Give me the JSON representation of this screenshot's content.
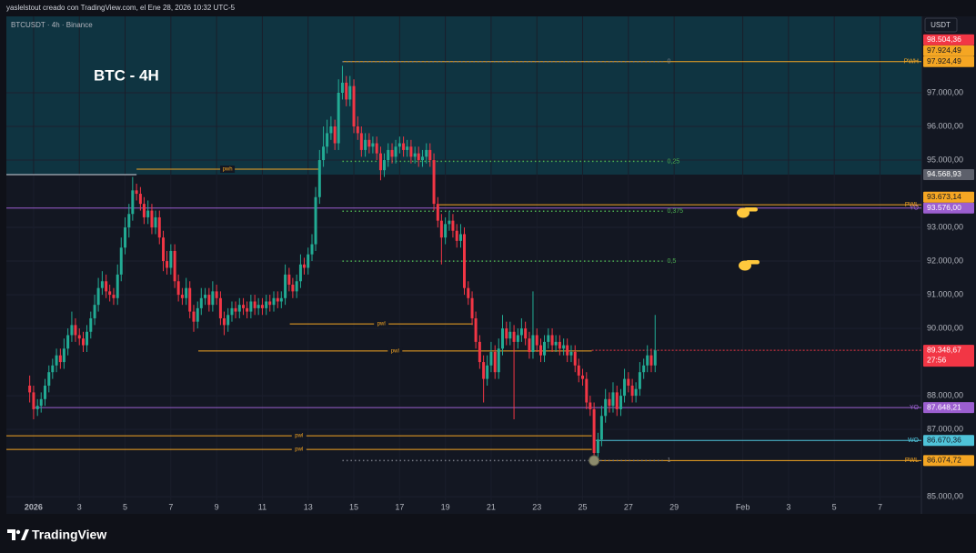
{
  "header": {
    "author_line": "yaslelstout creado con TradingView.com, el Ene 28, 2026 10:32 UTC-5",
    "symbol": "BTCUSDT · 4h · Binance",
    "currency": "USDT",
    "brand": "TradingView"
  },
  "chart_data": {
    "type": "candlestick",
    "title": "BTC - 4H",
    "x": [
      0.83,
      1,
      1.17,
      1.33,
      1.5,
      1.67,
      1.83,
      2,
      2.17,
      2.33,
      2.5,
      2.67,
      2.83,
      3,
      3.17,
      3.33,
      3.5,
      3.67,
      3.83,
      4,
      4.17,
      4.33,
      4.5,
      4.67,
      4.83,
      5,
      5.17,
      5.33,
      5.5,
      5.67,
      5.83,
      6,
      6.17,
      6.33,
      6.5,
      6.67,
      6.83,
      7,
      7.17,
      7.33,
      7.5,
      7.67,
      7.83,
      8,
      8.17,
      8.33,
      8.5,
      8.67,
      8.83,
      9,
      9.17,
      9.33,
      9.5,
      9.67,
      9.83,
      10,
      10.17,
      10.33,
      10.5,
      10.67,
      10.83,
      11,
      11.17,
      11.33,
      11.5,
      11.67,
      11.83,
      12,
      12.17,
      12.33,
      12.5,
      12.67,
      12.83,
      13,
      13.17,
      13.33,
      13.5,
      13.67,
      13.83,
      14,
      14.17,
      14.33,
      14.5,
      14.67,
      14.83,
      15,
      15.17,
      15.33,
      15.5,
      15.67,
      15.83,
      16,
      16.17,
      16.33,
      16.5,
      16.67,
      16.83,
      17,
      17.17,
      17.33,
      17.5,
      17.67,
      17.83,
      18,
      18.17,
      18.33,
      18.5,
      18.67,
      18.83,
      19,
      19.17,
      19.33,
      19.5,
      19.67,
      19.83,
      20,
      20.17,
      20.33,
      20.5,
      20.67,
      20.83,
      21,
      21.17,
      21.33,
      21.5,
      21.67,
      21.83,
      22,
      22.17,
      22.33,
      22.5,
      22.67,
      22.83,
      23,
      23.17,
      23.33,
      23.5,
      23.67,
      23.83,
      24,
      24.17,
      24.33,
      24.5,
      24.67,
      24.83,
      25,
      25.17,
      25.33,
      25.5,
      25.67,
      25.83,
      26,
      26.17,
      26.33,
      26.5,
      26.67,
      26.83,
      27,
      27.17,
      27.33,
      27.5,
      27.67,
      27.83,
      28,
      28.17
    ],
    "open": [
      88300,
      88100,
      87600,
      87700,
      87900,
      88300,
      88700,
      88900,
      89200,
      89000,
      89400,
      89800,
      90100,
      89800,
      89700,
      89500,
      89900,
      90300,
      90700,
      91200,
      91400,
      91100,
      91000,
      90900,
      91600,
      92400,
      93000,
      93400,
      94100,
      94000,
      93700,
      93300,
      93500,
      93000,
      93300,
      92700,
      92000,
      91800,
      92300,
      91400,
      91000,
      90900,
      91200,
      90500,
      90200,
      90600,
      90900,
      91000,
      90700,
      91100,
      90900,
      90300,
      90100,
      90400,
      90600,
      90500,
      90700,
      90600,
      90500,
      90800,
      90600,
      90700,
      90600,
      90800,
      90700,
      90900,
      90800,
      90900,
      91600,
      91300,
      91100,
      91400,
      91900,
      91800,
      92200,
      92500,
      93900,
      95000,
      95400,
      95800,
      96000,
      95500,
      97000,
      97300,
      96800,
      97200,
      96000,
      95800,
      95300,
      95600,
      95400,
      95500,
      95200,
      94700,
      95000,
      95300,
      95100,
      95400,
      95500,
      95300,
      95400,
      95100,
      95200,
      95000,
      95100,
      95300,
      95000,
      93700,
      93200,
      92700,
      93100,
      93200,
      92900,
      92600,
      92800,
      91200,
      90900,
      90300,
      89600,
      89000,
      88500,
      88900,
      89300,
      88700,
      89400,
      90000,
      89700,
      89900,
      89600,
      89800,
      90000,
      89700,
      89300,
      89800,
      89500,
      89200,
      89600,
      89800,
      89500,
      89600,
      89400,
      89500,
      89200,
      89300,
      88900,
      88600,
      88500,
      87800,
      87600,
      86300,
      86700,
      87400,
      87900,
      87700,
      88100,
      87600,
      88000,
      88500,
      88300,
      88000,
      88200,
      88700,
      88900,
      89200,
      88900
    ],
    "high": [
      88600,
      88300,
      87900,
      88100,
      88500,
      88900,
      89100,
      89400,
      89400,
      89700,
      90000,
      90500,
      90300,
      90000,
      89900,
      90100,
      90500,
      91000,
      91500,
      91700,
      91600,
      91300,
      91200,
      91900,
      92700,
      93300,
      93700,
      94500,
      94300,
      94200,
      93900,
      93800,
      93700,
      93500,
      93500,
      92900,
      92300,
      92500,
      92500,
      91600,
      91200,
      91500,
      91400,
      90700,
      90800,
      91200,
      91200,
      91200,
      91400,
      91300,
      91100,
      90500,
      90600,
      90800,
      90800,
      90900,
      90900,
      90800,
      91000,
      91000,
      90900,
      90900,
      91000,
      91000,
      91100,
      91100,
      91100,
      91900,
      91800,
      91500,
      91600,
      92200,
      92100,
      92400,
      92800,
      94200,
      95300,
      96000,
      96200,
      96300,
      96200,
      97400,
      97800,
      97500,
      97500,
      97400,
      96300,
      96000,
      95800,
      95800,
      95700,
      95700,
      95400,
      95200,
      95500,
      95500,
      95600,
      95700,
      95700,
      95600,
      95600,
      95400,
      95400,
      95300,
      95500,
      95500,
      95200,
      93900,
      93400,
      93300,
      93500,
      93400,
      93100,
      93100,
      93000,
      91400,
      91100,
      90500,
      89800,
      89200,
      89200,
      89600,
      89500,
      89700,
      90400,
      90200,
      90200,
      90100,
      90000,
      90300,
      90200,
      89900,
      91100,
      90000,
      89700,
      89800,
      90000,
      90000,
      89800,
      89800,
      89700,
      89700,
      89500,
      89500,
      89100,
      88800,
      88700,
      88000,
      87800,
      86900,
      87700,
      88200,
      88100,
      88400,
      88300,
      88200,
      88800,
      88700,
      88500,
      88400,
      89000,
      89100,
      89500,
      89400,
      90400
    ],
    "low": [
      87800,
      87300,
      87400,
      87500,
      87700,
      88100,
      88500,
      88700,
      88800,
      88800,
      89200,
      89600,
      89600,
      89500,
      89300,
      89300,
      89700,
      90100,
      90500,
      91000,
      90900,
      90800,
      90700,
      90700,
      91400,
      92200,
      92700,
      93200,
      93800,
      93500,
      93100,
      93100,
      92800,
      92800,
      92500,
      91700,
      91600,
      91600,
      91200,
      90800,
      90700,
      90700,
      90300,
      89900,
      90000,
      90400,
      90700,
      90500,
      90500,
      90700,
      90100,
      89800,
      89900,
      90200,
      90300,
      90300,
      90400,
      90300,
      90300,
      90400,
      90400,
      90400,
      90400,
      90500,
      90500,
      90600,
      90600,
      90700,
      91100,
      90900,
      90900,
      91200,
      91600,
      91600,
      92000,
      92300,
      93700,
      94800,
      95200,
      95600,
      95300,
      95300,
      96800,
      96600,
      96600,
      95800,
      95600,
      95100,
      95100,
      95200,
      95200,
      95000,
      94400,
      94500,
      94800,
      94900,
      94900,
      95200,
      95100,
      95100,
      94900,
      94900,
      94800,
      94800,
      94900,
      94800,
      93500,
      93000,
      91900,
      92500,
      92900,
      92700,
      92400,
      92400,
      91000,
      90700,
      90100,
      89400,
      88800,
      87800,
      88300,
      88700,
      88500,
      88500,
      89200,
      89500,
      89500,
      87300,
      89400,
      89600,
      89500,
      89100,
      89100,
      89300,
      89000,
      89000,
      89400,
      89300,
      89300,
      89200,
      89200,
      89000,
      89000,
      88700,
      88400,
      88300,
      87600,
      87400,
      86200,
      86074.72,
      86500,
      87200,
      87500,
      87500,
      87400,
      87400,
      87800,
      88100,
      87800,
      87800,
      88000,
      88500,
      88700,
      88700,
      88700
    ],
    "close": [
      88100,
      87600,
      87700,
      87900,
      88300,
      88700,
      88900,
      89200,
      89000,
      89400,
      89800,
      90100,
      89800,
      89700,
      89500,
      89900,
      90300,
      90700,
      91200,
      91400,
      91100,
      91000,
      90900,
      91600,
      92400,
      93000,
      93400,
      94100,
      94000,
      93700,
      93300,
      93500,
      93000,
      93300,
      92700,
      92000,
      91800,
      92300,
      91400,
      91000,
      90900,
      91200,
      90500,
      90200,
      90600,
      90900,
      91000,
      90700,
      91100,
      90900,
      90300,
      90100,
      90400,
      90600,
      90500,
      90700,
      90600,
      90500,
      90800,
      90600,
      90700,
      90600,
      90800,
      90700,
      90900,
      90800,
      90900,
      91600,
      91300,
      91100,
      91400,
      91900,
      91800,
      92200,
      92500,
      93900,
      95000,
      95400,
      95800,
      96000,
      95500,
      97000,
      97300,
      96800,
      97200,
      96000,
      95800,
      95300,
      95600,
      95400,
      95500,
      95200,
      94700,
      95000,
      95300,
      95100,
      95400,
      95500,
      95300,
      95400,
      95100,
      95200,
      95000,
      95100,
      95300,
      95000,
      93700,
      93200,
      92700,
      93100,
      93200,
      92900,
      92600,
      92800,
      91200,
      90900,
      90300,
      89600,
      89000,
      88500,
      88900,
      89300,
      88700,
      89400,
      90000,
      89700,
      89900,
      89600,
      89800,
      90000,
      89700,
      89300,
      89800,
      89500,
      89200,
      89600,
      89800,
      89500,
      89600,
      89400,
      89500,
      89200,
      89300,
      88900,
      88600,
      88500,
      87800,
      87600,
      86300,
      86700,
      87400,
      87900,
      87700,
      88100,
      87600,
      88000,
      88500,
      88300,
      88000,
      88200,
      88700,
      88900,
      89200,
      88900,
      89348.67
    ],
    "up_color": "#22ab94",
    "down_color": "#f23645",
    "xlim": [
      -0.19,
      39.81
    ],
    "xticks": [
      {
        "value": 1,
        "label": "2026"
      },
      3,
      5,
      7,
      9,
      11,
      13,
      15,
      17,
      19,
      21,
      23,
      25,
      27,
      29,
      {
        "value": 32,
        "label": "Feb"
      },
      {
        "value": 34,
        "label": "3"
      },
      {
        "value": 36,
        "label": "5"
      },
      {
        "value": 38,
        "label": "7"
      }
    ],
    "ylim": [
      84490,
      99270
    ],
    "yticks": [
      {
        "value": 85000,
        "label": "85.000,00"
      },
      {
        "value": 87000,
        "label": "87.000,00"
      },
      {
        "value": 88000,
        "label": "88.000,00"
      },
      {
        "value": 90000,
        "label": "90.000,00"
      },
      {
        "value": 91000,
        "label": "91.000,00"
      },
      {
        "value": 92000,
        "label": "92.000,00"
      },
      {
        "value": 93000,
        "label": "93.000,00"
      },
      {
        "value": 95000,
        "label": "95.000,00"
      },
      {
        "value": 96000,
        "label": "96.000,00"
      },
      {
        "value": 97000,
        "label": "97.000,00"
      }
    ],
    "zone": {
      "low": 94568.93,
      "color": "#0f3441"
    },
    "levels": [
      {
        "value": 94568.93,
        "color": "#d1d4dc",
        "to": 5.5
      },
      {
        "value": 94730,
        "label": "pwh",
        "color": "#f5a623",
        "from": 5.5,
        "to": 13.45,
        "label_at": "center"
      },
      {
        "value": 97924.49,
        "label": "PWH",
        "color": "#f5a623",
        "from": 14.5,
        "label_at": "end"
      },
      {
        "value": 93673.14,
        "label": "PWL",
        "color": "#f5a623",
        "from": 18.73,
        "label_at": "end"
      },
      {
        "value": 93576,
        "label": "YO",
        "color": "#9c5fd0",
        "label_at": "end"
      },
      {
        "value": 90135,
        "label": "pwl",
        "color": "#f5a623",
        "from": 12.2,
        "to": 20.2,
        "label_at": "center"
      },
      {
        "value": 89330,
        "label": "pwl",
        "color": "#f5a623",
        "from": 8.2,
        "to": 25.4,
        "label_at": "center"
      },
      {
        "value": 89348.67,
        "color": "#f23645",
        "from": 25.4,
        "style": "dashed"
      },
      {
        "value": 87648.21,
        "label": "YO",
        "color": "#9c5fd0",
        "from": 1,
        "label_at": "end"
      },
      {
        "value": 86810,
        "label": "pwl",
        "color": "#f5a623",
        "to": 25.4,
        "label_at": "center"
      },
      {
        "value": 86670.36,
        "label": "WO",
        "color": "#4fc3d9",
        "from": 25.57,
        "label_at": "end"
      },
      {
        "value": 86405,
        "label": "pwl",
        "color": "#f5a623",
        "to": 25.4,
        "label_at": "center"
      },
      {
        "value": 86074.72,
        "label": "PWL",
        "color": "#f5a623",
        "from": 25.57,
        "label_at": "end"
      }
    ],
    "fib": {
      "from": 97924.49,
      "to": 86074.72,
      "x_from": 14.5,
      "x_to": 28.5,
      "levels": [
        0,
        {
          "value": 0.25,
          "label": "0,25"
        },
        {
          "value": 0.375,
          "label": "0,375"
        },
        {
          "value": 0.5,
          "label": "0,5"
        },
        1
      ],
      "colors": [
        "#787b86",
        "#4caf50",
        "#4caf50",
        "#4caf50",
        "#787b86"
      ]
    },
    "marker": {
      "x": 25.5,
      "value": 86074.72,
      "color": "#8c8b6c"
    },
    "price_labels": [
      {
        "value": 98504.36,
        "label": "98.504,36",
        "color": "#f23645"
      },
      {
        "value": 97924.49,
        "label": "97.924,49",
        "color": "#f5a623"
      },
      {
        "value": 97924.49,
        "label": "97.924,49",
        "color": "#f5a623"
      },
      {
        "value": 94568.93,
        "label": "94.568,93",
        "color": "#5d606b"
      },
      {
        "value": 93673.14,
        "label": "93.673,14",
        "color": "#f5a623"
      },
      {
        "value": 93576,
        "label": "93.576,00",
        "color": "#9c5fd0"
      },
      {
        "value": 89348.67,
        "label": "89.348,67",
        "sublabel": "27:56",
        "color": "#f23645"
      },
      {
        "value": 87648.21,
        "label": "87.648,21",
        "color": "#9c5fd0"
      },
      {
        "value": 86670.36,
        "label": "86.670,36",
        "color": "#4fc3d9"
      },
      {
        "value": 86074.72,
        "label": "86.074,72",
        "color": "#f5a623"
      }
    ]
  }
}
